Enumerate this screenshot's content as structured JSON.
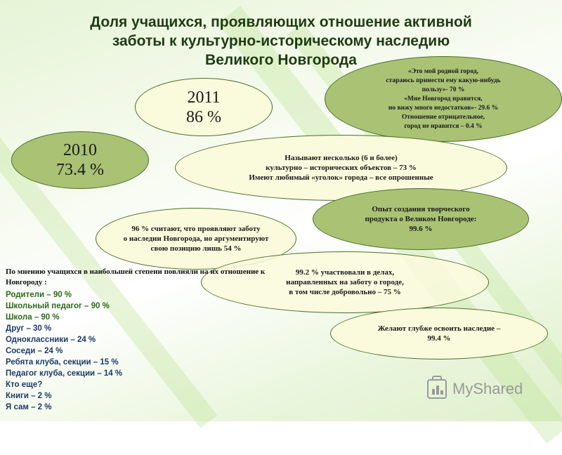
{
  "title": {
    "line1": "Доля учащихся, проявляющих отношение активной",
    "line2": "заботы к культурно-историческому наследию",
    "line3": "Великого Новгорода"
  },
  "year2011": {
    "year": "2011",
    "value": "86 %"
  },
  "year2010": {
    "year": "2010",
    "value": "73.4 %"
  },
  "opinions": {
    "l1": "«Это мой родной город,",
    "l2": "стараюсь принести ему какую-нибудь",
    "l3": "пользу»- 70  %",
    "l4": "«Мне Новгород нравится,",
    "l5": "но вижу много недостатков»- 29.6 %",
    "l6": "Отношение отрицательное,",
    "l7": "город не нравится – 0.4 %"
  },
  "objects": {
    "l1": "Называют несколько (6 и более)",
    "l2": "культурно – исторических объектов   – 73 %",
    "l3": "Имеют любимый «уголок» города  – все опрошенные"
  },
  "creative": {
    "l1": "Опыт создания творческого",
    "l2": "продукта о Великом Новгороде:",
    "l3": "99.6  %"
  },
  "position": {
    "l1": "96  % считают, что проявляют  заботу",
    "l2": "о наследии Новгорода, но аргументируют",
    "l3": "свою позицию лишь 54 %"
  },
  "participation": {
    "l1": "99.2 % участвовали в делах,",
    "l2": "направленных на заботу о городе,",
    "l3": "в том числе добровольно – 75 %"
  },
  "mastery": {
    "l1": "Желают глубже освоить наследие –",
    "l2": "99.4 %"
  },
  "influence": {
    "intro": "По мнению учащихся в наибольшей степени повлияли на их отношение к Новгороду :",
    "items": [
      "Родители – 90 %",
      "Школьный педагог – 90 %",
      "Школа – 90 %",
      "Друг – 30 %",
      "Одноклассники – 24 %",
      "Соседи – 24 %",
      "Ребята клуба, секции – 15 %",
      "Педагог клуба, секции – 14 %",
      "Кто еще?",
      "Книги – 2 %",
      "Я сам – 2 %"
    ]
  },
  "logo": {
    "text": "MyShared"
  },
  "colors": {
    "title": "#1f3b14",
    "accent_green": "#2a6a1a",
    "light_ellipse": "#fafadc",
    "dark_ellipse": "#a9c274"
  }
}
